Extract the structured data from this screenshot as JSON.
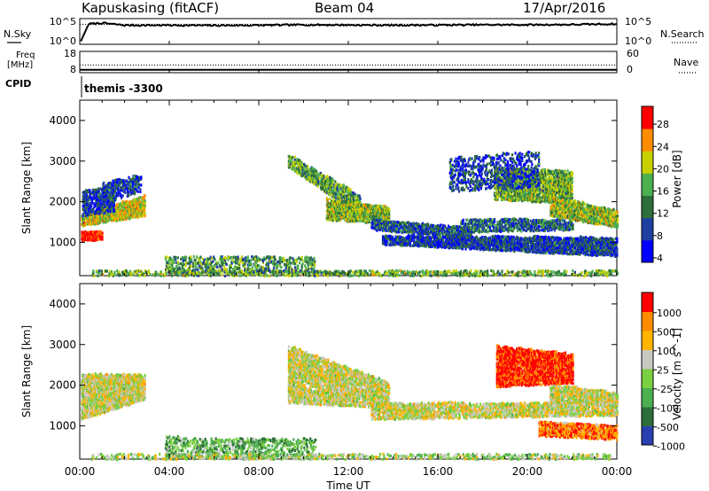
{
  "header": {
    "station": "Kapuskasing (fitACF)",
    "beam": "Beam 04",
    "date": "17/Apr/2016"
  },
  "chart_data": [
    {
      "type": "line",
      "name": "noise-panel",
      "left_label": "N.Sky",
      "right_label": "N.Search",
      "left_ticks": [
        "10^5",
        "10^0"
      ],
      "right_ticks": [
        "10^5",
        "10^0"
      ],
      "series": [
        {
          "name": "N.Sky",
          "style": "solid",
          "x": [
            0.05,
            0.4,
            1,
            2,
            4,
            6,
            8,
            10,
            12,
            14,
            16,
            18,
            20,
            22,
            24
          ],
          "y_log10": [
            0.3,
            4.2,
            4.4,
            3.9,
            3.9,
            3.85,
            3.9,
            4.0,
            3.95,
            3.9,
            3.95,
            4.0,
            4.0,
            4.05,
            4.2
          ]
        },
        {
          "name": "N.Search",
          "style": "dotted",
          "x": [
            0,
            24
          ],
          "y_log10": [
            4.1,
            4.1
          ]
        }
      ]
    },
    {
      "type": "line",
      "name": "freq-panel",
      "left_label_top": "Freq",
      "left_label_bottom": "[MHz]",
      "left_ticks": [
        "18",
        "8"
      ],
      "right_ticks": [
        "60",
        "0"
      ],
      "right_label": "Nave",
      "cpid_label": "CPID",
      "cpid_text": "themis -3300",
      "series": [
        {
          "name": "Freq",
          "style": "solid",
          "x": [
            0,
            24
          ],
          "y": [
            8.6,
            8.6
          ]
        },
        {
          "name": "Nave",
          "style": "dotted",
          "x": [
            0,
            24
          ],
          "y": [
            20,
            20
          ]
        }
      ]
    },
    {
      "type": "heatmap",
      "name": "power-panel",
      "ylabel": "Slant Range [km]",
      "yticks": [
        "4000",
        "3000",
        "2000",
        "1000"
      ],
      "ylim": [
        180,
        4500
      ],
      "xlim": [
        0,
        24
      ],
      "colorbar_label": "Power [dB]",
      "colorbar_ticks": [
        "28",
        "24",
        "20",
        "16",
        "12",
        "8",
        "4"
      ],
      "colors": [
        "#0000ff",
        "#1e3fa0",
        "#2e6e3a",
        "#4caf50",
        "#c8d000",
        "#ff8c00",
        "#ff0000"
      ],
      "regions": [
        {
          "t0": 0.05,
          "t1": 2.9,
          "r0": 1450,
          "r1": 1700,
          "r0e": 1700,
          "r1e": 2200,
          "lvl": 4.0,
          "density": 0.75
        },
        {
          "t0": 0.05,
          "t1": 1.0,
          "r0": 1100,
          "r1": 1300,
          "r0e": 1100,
          "r1e": 1300,
          "lvl": 6.2,
          "density": 0.9
        },
        {
          "t0": 0.1,
          "t1": 1.5,
          "r0": 1700,
          "r1": 2300,
          "r0e": 1800,
          "r1e": 2400,
          "lvl": 1.0,
          "density": 0.55
        },
        {
          "t0": 1.0,
          "t1": 2.7,
          "r0": 2000,
          "r1": 2500,
          "r0e": 2300,
          "r1e": 2700,
          "lvl": 1.0,
          "density": 0.45
        },
        {
          "t0": 9.3,
          "t1": 12.5,
          "r0": 2900,
          "r1": 3200,
          "r0e": 1700,
          "r1e": 2200,
          "lvl": 2.8,
          "density": 0.6
        },
        {
          "t0": 11.0,
          "t1": 13.8,
          "r0": 1600,
          "r1": 2100,
          "r0e": 1500,
          "r1e": 1900,
          "lvl": 3.2,
          "density": 0.7
        },
        {
          "t0": 13.0,
          "t1": 17.5,
          "r0": 1350,
          "r1": 1600,
          "r0e": 1150,
          "r1e": 1400,
          "lvl": 1.3,
          "density": 0.6
        },
        {
          "t0": 13.5,
          "t1": 24.0,
          "r0": 1000,
          "r1": 1200,
          "r0e": 700,
          "r1e": 1150,
          "lvl": 1.0,
          "density": 0.7
        },
        {
          "t0": 17.0,
          "t1": 22.0,
          "r0": 1300,
          "r1": 1600,
          "r0e": 1350,
          "r1e": 1600,
          "lvl": 1.6,
          "density": 0.55
        },
        {
          "t0": 18.5,
          "t1": 22.0,
          "r0": 2100,
          "r1": 2900,
          "r0e": 2000,
          "r1e": 2800,
          "lvl": 3.0,
          "density": 0.65
        },
        {
          "t0": 21.0,
          "t1": 24.0,
          "r0": 1700,
          "r1": 2200,
          "r0e": 1400,
          "r1e": 1800,
          "lvl": 3.4,
          "density": 0.7
        },
        {
          "t0": 16.5,
          "t1": 20.5,
          "r0": 2300,
          "r1": 3100,
          "r0e": 2400,
          "r1e": 3300,
          "lvl": 1.0,
          "density": 0.25
        },
        {
          "t0": 0.5,
          "t1": 24.0,
          "r0": 180,
          "r1": 340,
          "r0e": 180,
          "r1e": 340,
          "lvl": 3.0,
          "density": 0.35
        },
        {
          "t0": 3.8,
          "t1": 10.5,
          "r0": 300,
          "r1": 700,
          "r0e": 300,
          "r1e": 700,
          "lvl": 2.5,
          "density": 0.3
        }
      ]
    },
    {
      "type": "heatmap",
      "name": "velocity-panel",
      "ylabel": "Slant Range [km]",
      "yticks": [
        "4000",
        "3000",
        "2000",
        "1000"
      ],
      "ylim": [
        180,
        4500
      ],
      "xlim": [
        0,
        24
      ],
      "colorbar_label": "Velocity [m s^-1]",
      "colorbar_ticks": [
        "1000",
        "500",
        "100",
        "25",
        "-25",
        "-100",
        "-500",
        "-1000"
      ],
      "colors": [
        "#2a3fb0",
        "#2e6e3a",
        "#4caf50",
        "#7ad040",
        "#c8c8c0",
        "#ffb400",
        "#ff8c00",
        "#ff0000"
      ],
      "regions": [
        {
          "t0": 0.05,
          "t1": 2.9,
          "r0": 1200,
          "r1": 2300,
          "r0e": 1700,
          "r1e": 2300,
          "lvl": 4.0,
          "density": 0.75
        },
        {
          "t0": 9.3,
          "t1": 13.8,
          "r0": 1600,
          "r1": 3000,
          "r0e": 1500,
          "r1e": 2100,
          "lvl": 4.0,
          "density": 0.6
        },
        {
          "t0": 13.0,
          "t1": 24.0,
          "r0": 1200,
          "r1": 1600,
          "r0e": 1300,
          "r1e": 1600,
          "lvl": 4.0,
          "density": 0.55
        },
        {
          "t0": 21.0,
          "t1": 24.0,
          "r0": 1650,
          "r1": 2050,
          "r0e": 1550,
          "r1e": 1850,
          "lvl": 4.0,
          "density": 0.7
        },
        {
          "t0": 18.6,
          "t1": 22.0,
          "r0": 2000,
          "r1": 3000,
          "r0e": 2100,
          "r1e": 2800,
          "lvl": 7.0,
          "density": 0.7
        },
        {
          "t0": 20.5,
          "t1": 24.0,
          "r0": 800,
          "r1": 1150,
          "r0e": 700,
          "r1e": 1050,
          "lvl": 6.0,
          "density": 0.7
        },
        {
          "t0": 3.8,
          "t1": 10.5,
          "r0": 250,
          "r1": 750,
          "r0e": 250,
          "r1e": 700,
          "lvl": 2.2,
          "density": 0.3
        },
        {
          "t0": 0.5,
          "t1": 24.0,
          "r0": 180,
          "r1": 320,
          "r0e": 180,
          "r1e": 320,
          "lvl": 3.5,
          "density": 0.3
        }
      ]
    }
  ],
  "xaxis": {
    "label": "Time UT",
    "ticks": [
      "00:00",
      "04:00",
      "08:00",
      "12:00",
      "16:00",
      "20:00",
      "00:00"
    ]
  }
}
